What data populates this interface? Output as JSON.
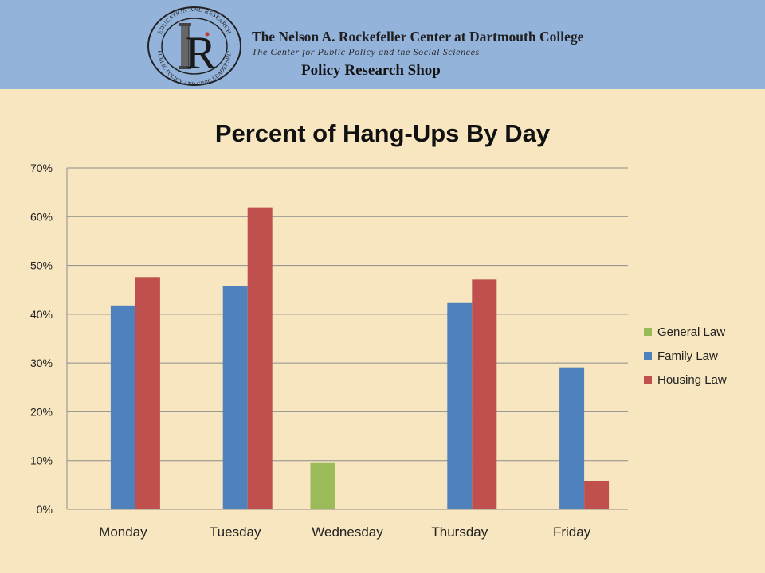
{
  "header": {
    "seal_top_text": "EDUCATION AND RESEARCH",
    "seal_bottom_text": "PUBLIC POLICY AND CIVIC LEADERSHIP",
    "seal_letter": "R",
    "center_name": "The Nelson A. Rockefeller Center at Dartmouth College",
    "center_tagline": "The Center for Public Policy and the Social Sciences",
    "shop_name": "Policy Research Shop"
  },
  "colors": {
    "header_bg": "#93b3db",
    "page_bg": "#f7e6bf",
    "general_law": "#9bbb59",
    "family_law": "#4f81bd",
    "housing_law": "#c0504d",
    "accent_red": "#c0392b"
  },
  "chart_data": {
    "type": "bar",
    "title": "Percent of Hang-Ups By Day",
    "xlabel": "",
    "ylabel": "",
    "categories": [
      "Monday",
      "Tuesday",
      "Wednesday",
      "Thursday",
      "Friday"
    ],
    "series": [
      {
        "name": "General Law",
        "color": "#9bbb59",
        "values": [
          null,
          null,
          9.5,
          null,
          null
        ]
      },
      {
        "name": "Family Law",
        "color": "#4f81bd",
        "values": [
          41.8,
          45.8,
          null,
          42.3,
          29.1
        ]
      },
      {
        "name": "Housing Law",
        "color": "#c0504d",
        "values": [
          47.6,
          61.9,
          null,
          47.1,
          5.8
        ]
      }
    ],
    "ylim": [
      0,
      70
    ],
    "yticks": [
      0,
      10,
      20,
      30,
      40,
      50,
      60,
      70
    ],
    "ytick_labels": [
      "0%",
      "10%",
      "20%",
      "30%",
      "40%",
      "50%",
      "60%",
      "70%"
    ],
    "grid": true,
    "legend_position": "right"
  }
}
